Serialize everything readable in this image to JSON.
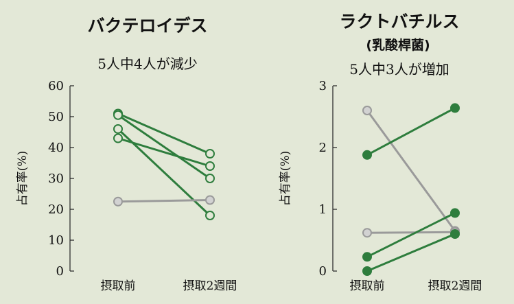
{
  "colors": {
    "background": "#e3e8d7",
    "green": "#2e7d3d",
    "gray": "#9a9a9a",
    "gray_fill": "#d2d2d2",
    "axis": "#222222"
  },
  "chart_data": [
    {
      "type": "line",
      "title": "バクテロイデス",
      "title_line2": "",
      "subtitle": "5人中4人が減少",
      "ylabel": "占有率(%)",
      "categories": [
        "摂取前",
        "摂取2週間"
      ],
      "ylim": [
        0,
        60
      ],
      "yticks": [
        0,
        10,
        20,
        30,
        40,
        50,
        60
      ],
      "marker": "open",
      "series": [
        {
          "color": "green",
          "values": [
            51,
            38
          ]
        },
        {
          "color": "green",
          "values": [
            50.5,
            30
          ]
        },
        {
          "color": "green",
          "values": [
            46,
            18
          ]
        },
        {
          "color": "green",
          "values": [
            43,
            34
          ]
        },
        {
          "color": "gray",
          "values": [
            22.5,
            23
          ]
        }
      ]
    },
    {
      "type": "line",
      "title": "ラクトバチルス",
      "title_line2": "(乳酸桿菌)",
      "subtitle": "5人中3人が増加",
      "ylabel": "占有率(%)",
      "categories": [
        "摂取前",
        "摂取2週間"
      ],
      "ylim": [
        0,
        3
      ],
      "yticks": [
        0,
        1,
        2,
        3
      ],
      "marker": "filled",
      "series": [
        {
          "color": "gray",
          "values": [
            2.6,
            0.65
          ]
        },
        {
          "color": "gray",
          "values": [
            0.62,
            0.63
          ]
        },
        {
          "color": "green",
          "values": [
            1.88,
            2.64
          ]
        },
        {
          "color": "green",
          "values": [
            0.23,
            0.94
          ]
        },
        {
          "color": "green",
          "values": [
            0.0,
            0.6
          ]
        }
      ]
    }
  ]
}
